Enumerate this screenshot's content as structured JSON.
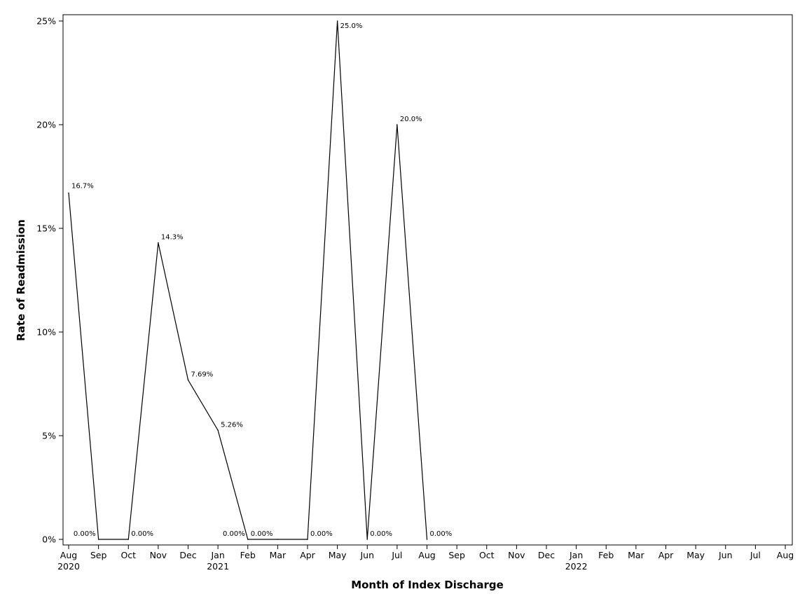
{
  "chart_data": {
    "type": "line",
    "xlabel": "Month of Index Discharge",
    "ylabel": "Rate of Readmission",
    "ylim": [
      0,
      25
    ],
    "y_ticks": [
      0,
      5,
      10,
      15,
      20,
      25
    ],
    "y_tick_labels": [
      "0%",
      "5%",
      "10%",
      "15%",
      "20%",
      "25%"
    ],
    "x_range": [
      "2020-08",
      "2022-08"
    ],
    "x_tick_labels": [
      "Aug",
      "Sep",
      "Oct",
      "Nov",
      "Dec",
      "Jan",
      "Feb",
      "Mar",
      "Apr",
      "May",
      "Jun",
      "Jul",
      "Aug",
      "Sep",
      "Oct",
      "Nov",
      "Dec",
      "Jan",
      "Feb",
      "Mar",
      "Apr",
      "May",
      "Jun",
      "Jul",
      "Aug"
    ],
    "x_year_labels": [
      {
        "month": "2020-08",
        "label": "2020"
      },
      {
        "month": "2021-01",
        "label": "2021"
      },
      {
        "month": "2022-01",
        "label": "2022"
      }
    ],
    "grid": false,
    "legend": "none",
    "series": [
      {
        "x": [
          "2020-08",
          "2020-09",
          "2020-10",
          "2020-11",
          "2020-12",
          "2021-01",
          "2021-02",
          "2021-03",
          "2021-04",
          "2021-05",
          "2021-06",
          "2021-07",
          "2021-08"
        ],
        "values": [
          16.7,
          0,
          0,
          14.3,
          7.69,
          5.26,
          0,
          0,
          0,
          25.0,
          0,
          20.0,
          0
        ],
        "data_labels": [
          "16.7%",
          "0.00%",
          "0.00%",
          "14.3%",
          "7.69%",
          "5.26%",
          "0.00%",
          null,
          "0.00%",
          "25.0%",
          "0.00%",
          "20.0%",
          "0.00%"
        ]
      }
    ]
  },
  "colors": {
    "line": "#000000",
    "axis": "#000000",
    "background": "#ffffff"
  }
}
